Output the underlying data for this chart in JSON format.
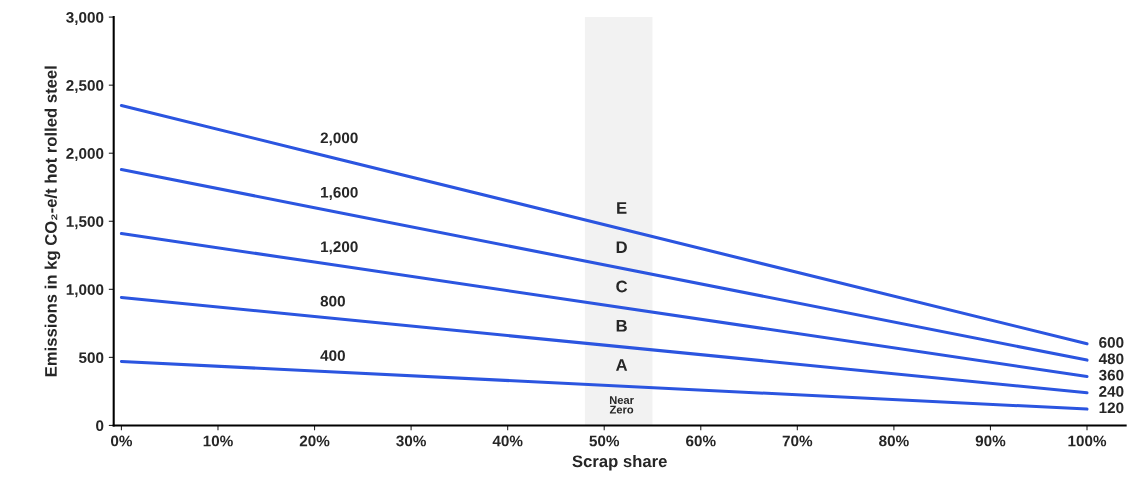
{
  "chart_data": {
    "type": "line",
    "xlabel": "Scrap share",
    "ylabel": "Emissions in kg CO₂-e/t hot rolled steel",
    "x": [
      0,
      20,
      100
    ],
    "series": [
      {
        "color": "#2b55e0",
        "values": [
          2350,
          2000,
          600
        ],
        "value_labels": [
          null,
          "2,000",
          "600"
        ]
      },
      {
        "color": "#2b55e0",
        "values": [
          1880,
          1600,
          480
        ],
        "value_labels": [
          null,
          "1,600",
          "480"
        ]
      },
      {
        "color": "#2b55e0",
        "values": [
          1410,
          1200,
          360
        ],
        "value_labels": [
          null,
          "1,200",
          "360"
        ]
      },
      {
        "color": "#2b55e0",
        "values": [
          940,
          800,
          240
        ],
        "value_labels": [
          null,
          "800",
          "240"
        ]
      },
      {
        "color": "#2b55e0",
        "values": [
          470,
          400,
          120
        ],
        "value_labels": [
          null,
          "400",
          "120"
        ]
      }
    ],
    "xlim": [
      -0.8,
      104
    ],
    "ylim": [
      0,
      3000
    ],
    "xticks": [
      {
        "value": 0,
        "label": "0%"
      },
      {
        "value": 10,
        "label": "10%"
      },
      {
        "value": 20,
        "label": "20%"
      },
      {
        "value": 30,
        "label": "30%"
      },
      {
        "value": 40,
        "label": "40%"
      },
      {
        "value": 50,
        "label": "50%"
      },
      {
        "value": 60,
        "label": "60%"
      },
      {
        "value": 70,
        "label": "70%"
      },
      {
        "value": 80,
        "label": "80%"
      },
      {
        "value": 90,
        "label": "90%"
      },
      {
        "value": 100,
        "label": "100%"
      }
    ],
    "yticks": [
      0,
      {
        "value": 500,
        "label": "500"
      },
      {
        "value": 1000,
        "label": "1,000"
      },
      {
        "value": 1500,
        "label": "1,500"
      },
      {
        "value": 2000,
        "label": "2,000"
      },
      {
        "value": 2500,
        "label": "2,500"
      },
      {
        "value": 3000,
        "label": "3,000"
      }
    ],
    "bands": [
      {
        "axis": "x",
        "from": 48,
        "to": 55,
        "color": "#f2f2f2"
      }
    ],
    "annotations": [
      "E",
      "D",
      "C",
      "B",
      "A",
      "Near\nZero"
    ],
    "grid": false,
    "legend": false,
    "marker": "none",
    "line_style": "solid"
  }
}
